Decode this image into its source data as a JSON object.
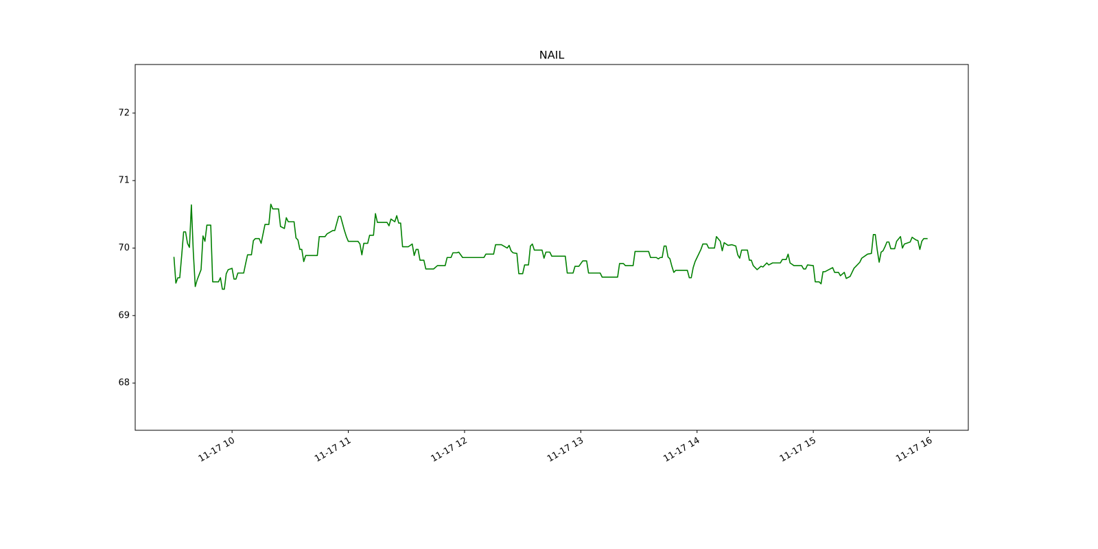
{
  "chart_data": {
    "type": "line",
    "title": "NAIL",
    "color": "#008000",
    "x": [
      "11-17 09:30",
      "11-17 09:31",
      "11-17 09:32",
      "11-17 09:33",
      "11-17 09:34",
      "11-17 09:35",
      "11-17 09:36",
      "11-17 09:37",
      "11-17 09:38",
      "11-17 09:39",
      "11-17 09:40",
      "11-17 09:41",
      "11-17 09:42",
      "11-17 09:44",
      "11-17 09:45",
      "11-17 09:46",
      "11-17 09:47",
      "11-17 09:49",
      "11-17 09:50",
      "11-17 09:53",
      "11-17 09:54",
      "11-17 09:55",
      "11-17 09:56",
      "11-17 09:57",
      "11-17 09:58",
      "11-17 10:00",
      "11-17 10:01",
      "11-17 10:02",
      "11-17 10:03",
      "11-17 10:06",
      "11-17 10:07",
      "11-17 10:08",
      "11-17 10:10",
      "11-17 10:11",
      "11-17 10:12",
      "11-17 10:14",
      "11-17 10:15",
      "11-17 10:16",
      "11-17 10:17",
      "11-17 10:19",
      "11-17 10:20",
      "11-17 10:21",
      "11-17 10:24",
      "11-17 10:25",
      "11-17 10:27",
      "11-17 10:28",
      "11-17 10:29",
      "11-17 10:32",
      "11-17 10:33",
      "11-17 10:34",
      "11-17 10:35",
      "11-17 10:36",
      "11-17 10:37",
      "11-17 10:38",
      "11-17 10:44",
      "11-17 10:45",
      "11-17 10:48",
      "11-17 10:49",
      "11-17 10:52",
      "11-17 10:53",
      "11-17 10:55",
      "11-17 10:56",
      "11-17 10:58",
      "11-17 10:59",
      "11-17 11:00",
      "11-17 11:05",
      "11-17 11:06",
      "11-17 11:07",
      "11-17 11:08",
      "11-17 11:10",
      "11-17 11:11",
      "11-17 11:13",
      "11-17 11:14",
      "11-17 11:15",
      "11-17 11:20",
      "11-17 11:21",
      "11-17 11:22",
      "11-17 11:24",
      "11-17 11:25",
      "11-17 11:26",
      "11-17 11:27",
      "11-17 11:28",
      "11-17 11:31",
      "11-17 11:33",
      "11-17 11:34",
      "11-17 11:35",
      "11-17 11:36",
      "11-17 11:37",
      "11-17 11:39",
      "11-17 11:40",
      "11-17 11:44",
      "11-17 11:46",
      "11-17 11:50",
      "11-17 11:51",
      "11-17 11:53",
      "11-17 11:54",
      "11-17 11:56",
      "11-17 11:57",
      "11-17 11:59",
      "11-17 12:10",
      "11-17 12:11",
      "11-17 12:15",
      "11-17 12:16",
      "11-17 12:19",
      "11-17 12:22",
      "11-17 12:23",
      "11-17 12:24",
      "11-17 12:25",
      "11-17 12:27",
      "11-17 12:28",
      "11-17 12:30",
      "11-17 12:31",
      "11-17 12:33",
      "11-17 12:34",
      "11-17 12:35",
      "11-17 12:36",
      "11-17 12:40",
      "11-17 12:41",
      "11-17 12:42",
      "11-17 12:44",
      "11-17 12:45",
      "11-17 12:52",
      "11-17 12:53",
      "11-17 12:56",
      "11-17 12:57",
      "11-17 12:59",
      "11-17 13:01",
      "11-17 13:03",
      "11-17 13:04",
      "11-17 13:10",
      "11-17 13:11",
      "11-17 13:19",
      "11-17 13:20",
      "11-17 13:22",
      "11-17 13:23",
      "11-17 13:27",
      "11-17 13:28",
      "11-17 13:35",
      "11-17 13:36",
      "11-17 13:39",
      "11-17 13:40",
      "11-17 13:41",
      "11-17 13:42",
      "11-17 13:43",
      "11-17 13:44",
      "11-17 13:45",
      "11-17 13:46",
      "11-17 13:47",
      "11-17 13:48",
      "11-17 13:49",
      "11-17 13:55",
      "11-17 13:56",
      "11-17 13:57",
      "11-17 13:58",
      "11-17 13:59",
      "11-17 14:00",
      "11-17 14:02",
      "11-17 14:03",
      "11-17 14:05",
      "11-17 14:06",
      "11-17 14:09",
      "11-17 14:10",
      "11-17 14:12",
      "11-17 14:13",
      "11-17 14:14",
      "11-17 14:16",
      "11-17 14:18",
      "11-17 14:20",
      "11-17 14:21",
      "11-17 14:22",
      "11-17 14:23",
      "11-17 14:26",
      "11-17 14:27",
      "11-17 14:28",
      "11-17 14:29",
      "11-17 14:31",
      "11-17 14:33",
      "11-17 14:34",
      "11-17 14:36",
      "11-17 14:37",
      "11-17 14:39",
      "11-17 14:43",
      "11-17 14:44",
      "11-17 14:46",
      "11-17 14:47",
      "11-17 14:48",
      "11-17 14:50",
      "11-17 14:54",
      "11-17 14:55",
      "11-17 14:56",
      "11-17 14:57",
      "11-17 15:00",
      "11-17 15:01",
      "11-17 15:03",
      "11-17 15:04",
      "11-17 15:05",
      "11-17 15:06",
      "11-17 15:08",
      "11-17 15:10",
      "11-17 15:11",
      "11-17 15:13",
      "11-17 15:14",
      "11-17 15:16",
      "11-17 15:17",
      "11-17 15:19",
      "11-17 15:21",
      "11-17 15:22",
      "11-17 15:24",
      "11-17 15:25",
      "11-17 15:27",
      "11-17 15:28",
      "11-17 15:30",
      "11-17 15:31",
      "11-17 15:32",
      "11-17 15:33",
      "11-17 15:34",
      "11-17 15:35",
      "11-17 15:36",
      "11-17 15:37",
      "11-17 15:38",
      "11-17 15:39",
      "11-17 15:40",
      "11-17 15:42",
      "11-17 15:43",
      "11-17 15:45",
      "11-17 15:46",
      "11-17 15:47",
      "11-17 15:50",
      "11-17 15:51",
      "11-17 15:53",
      "11-17 15:54",
      "11-17 15:55",
      "11-17 15:56",
      "11-17 15:57",
      "11-17 15:59"
    ],
    "values": [
      69.87,
      69.48,
      69.56,
      69.56,
      69.89,
      70.24,
      70.24,
      70.07,
      70.01,
      70.64,
      69.94,
      69.43,
      69.53,
      69.68,
      70.18,
      70.1,
      70.34,
      70.34,
      69.5,
      69.5,
      69.56,
      69.39,
      69.39,
      69.62,
      69.68,
      69.7,
      69.54,
      69.54,
      69.63,
      69.63,
      69.77,
      69.9,
      69.9,
      70.11,
      70.14,
      70.14,
      70.07,
      70.21,
      70.35,
      70.35,
      70.65,
      70.58,
      70.58,
      70.32,
      70.29,
      70.45,
      70.39,
      70.39,
      70.15,
      70.12,
      69.98,
      69.98,
      69.8,
      69.89,
      69.89,
      70.17,
      70.17,
      70.21,
      70.26,
      70.26,
      70.47,
      70.47,
      70.26,
      70.17,
      70.1,
      70.1,
      70.06,
      69.9,
      70.07,
      70.07,
      70.19,
      70.19,
      70.51,
      70.38,
      70.38,
      70.33,
      70.43,
      70.39,
      70.48,
      70.37,
      70.37,
      70.02,
      70.02,
      70.06,
      69.89,
      69.98,
      69.98,
      69.82,
      69.82,
      69.69,
      69.69,
      69.74,
      69.74,
      69.86,
      69.86,
      69.93,
      69.93,
      69.94,
      69.86,
      69.86,
      69.91,
      69.91,
      70.05,
      70.05,
      70.0,
      70.04,
      69.96,
      69.93,
      69.92,
      69.62,
      69.62,
      69.75,
      69.75,
      70.03,
      70.06,
      69.97,
      69.97,
      69.85,
      69.94,
      69.94,
      69.88,
      69.88,
      69.63,
      69.63,
      69.73,
      69.73,
      69.81,
      69.81,
      69.63,
      69.63,
      69.57,
      69.57,
      69.77,
      69.77,
      69.74,
      69.74,
      69.95,
      69.95,
      69.86,
      69.86,
      69.84,
      69.86,
      69.86,
      70.03,
      70.03,
      69.87,
      69.84,
      69.73,
      69.64,
      69.67,
      69.67,
      69.56,
      69.56,
      69.71,
      69.8,
      69.86,
      69.98,
      70.06,
      70.06,
      70.0,
      70.0,
      70.17,
      70.1,
      69.96,
      70.08,
      70.04,
      70.05,
      70.03,
      69.9,
      69.85,
      69.97,
      69.97,
      69.82,
      69.82,
      69.74,
      69.68,
      69.73,
      69.72,
      69.78,
      69.75,
      69.78,
      69.78,
      69.83,
      69.83,
      69.91,
      69.78,
      69.74,
      69.74,
      69.69,
      69.69,
      69.75,
      69.74,
      69.5,
      69.5,
      69.47,
      69.65,
      69.65,
      69.68,
      69.71,
      69.64,
      69.64,
      69.59,
      69.64,
      69.55,
      69.58,
      69.7,
      69.73,
      69.79,
      69.85,
      69.89,
      69.91,
      69.92,
      70.2,
      70.2,
      69.97,
      69.79,
      69.94,
      69.96,
      70.02,
      70.09,
      70.09,
      69.99,
      69.99,
      70.1,
      70.17,
      70.0,
      70.06,
      70.09,
      70.16,
      70.12,
      70.11,
      69.98,
      70.1,
      70.14,
      70.14
    ],
    "xlim": [
      "11-17 09:10",
      "11-17 16:20"
    ],
    "xticks": [
      {
        "value": "11-17 10:00",
        "label": "11-17 10"
      },
      {
        "value": "11-17 11:00",
        "label": "11-17 11"
      },
      {
        "value": "11-17 12:00",
        "label": "11-17 12"
      },
      {
        "value": "11-17 13:00",
        "label": "11-17 13"
      },
      {
        "value": "11-17 14:00",
        "label": "11-17 14"
      },
      {
        "value": "11-17 15:00",
        "label": "11-17 15"
      },
      {
        "value": "11-17 16:00",
        "label": "11-17 16"
      }
    ],
    "ylim": [
      67.3,
      72.72
    ],
    "yticks": [
      68,
      69,
      70,
      71,
      72
    ],
    "grid": false
  }
}
